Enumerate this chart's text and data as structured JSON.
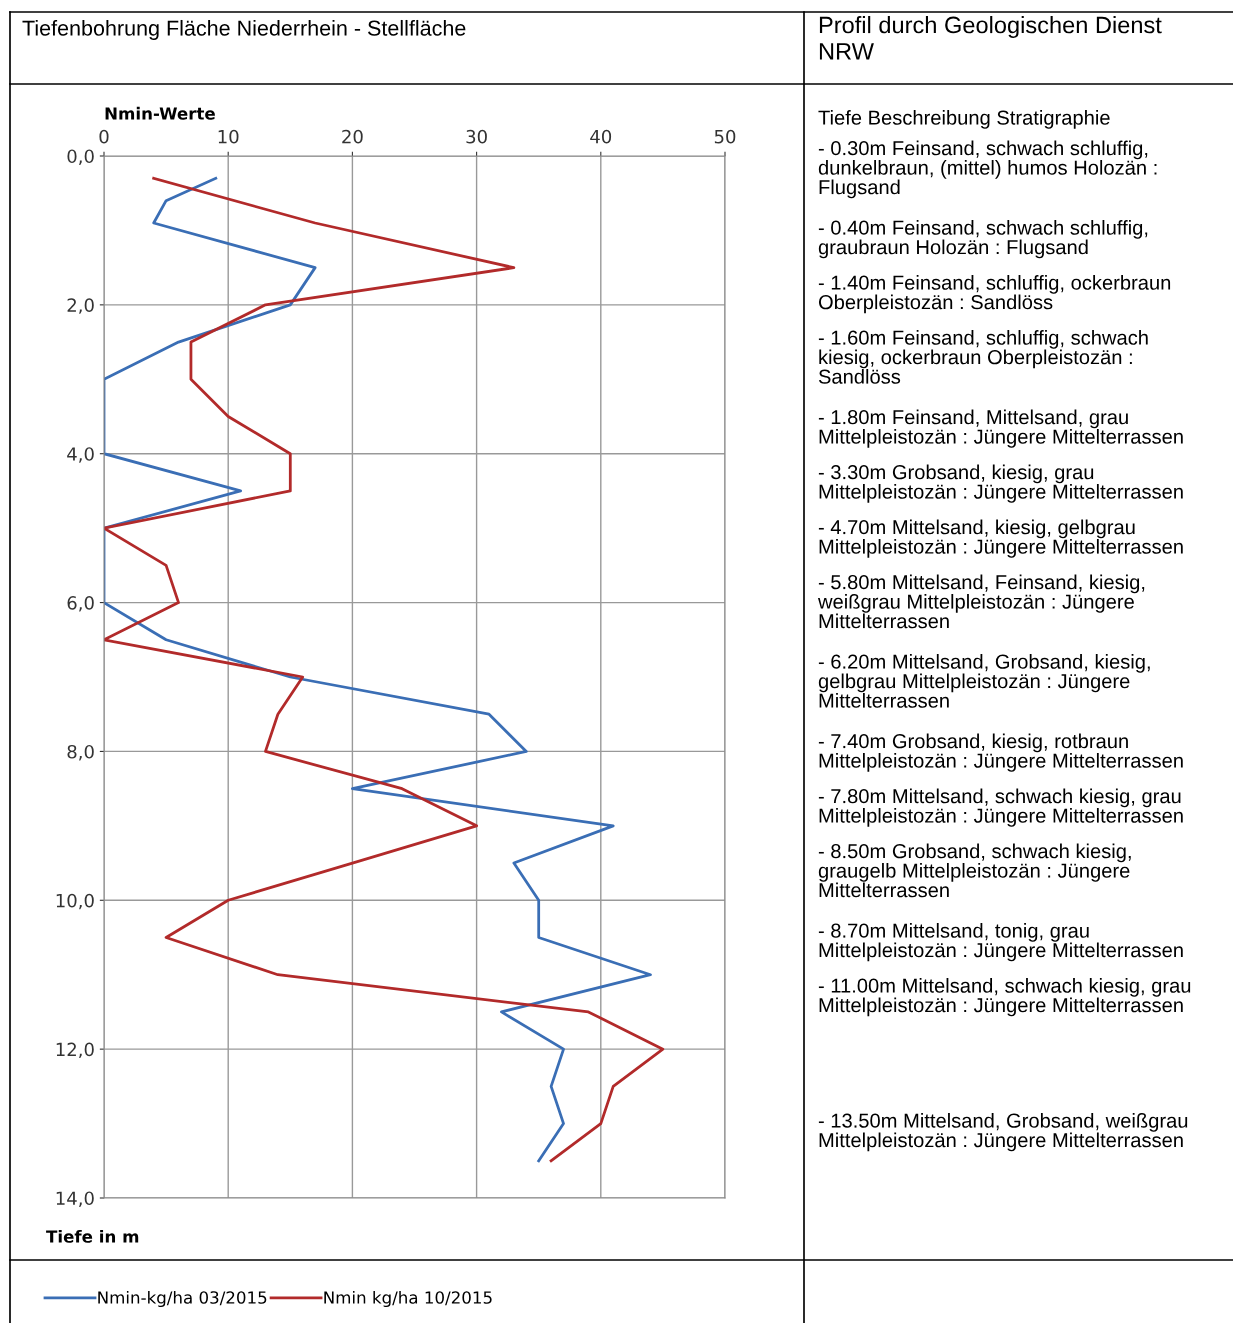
{
  "chart_data": {
    "type": "line",
    "title": "Tiefenbohrung Fläche Niederrhein - Stellfläche",
    "subtitle": "Profil durch Geologischen Dienst NRW",
    "xlabel": "Nmin-Werte",
    "ylabel": "Tiefe in m",
    "series": [
      {
        "name": "Nmin-kg/ha 03/2015",
        "color": "#3a6eb5",
        "x": [
          9,
          5,
          4,
          17,
          15,
          6,
          0,
          0,
          11,
          0,
          0,
          5,
          15,
          31,
          34,
          20,
          41,
          33,
          35,
          35,
          44,
          32,
          37,
          36,
          37,
          35
        ],
        "values": [
          0.3,
          0.6,
          0.9,
          1.5,
          2.0,
          2.5,
          3.0,
          4.0,
          4.5,
          5.0,
          6.0,
          6.5,
          7.0,
          7.5,
          8.0,
          8.5,
          9.0,
          9.5,
          10.0,
          10.5,
          11.0,
          11.5,
          12.0,
          12.5,
          13.0,
          13.5
        ]
      },
      {
        "name": "Nmin kg/ha 10/2015",
        "color": "#b22a2a",
        "x": [
          4,
          17,
          33,
          13,
          7,
          7,
          10,
          15,
          15,
          0,
          5,
          6,
          0,
          16,
          14,
          13,
          24,
          30,
          20,
          10,
          5,
          14,
          39,
          45,
          41,
          40,
          36
        ],
        "values": [
          0.3,
          0.9,
          1.5,
          2.0,
          2.5,
          3.0,
          3.5,
          4.0,
          4.5,
          5.0,
          5.5,
          6.0,
          6.5,
          7.0,
          7.5,
          8.0,
          8.5,
          9.0,
          9.5,
          10.0,
          10.5,
          11.0,
          11.5,
          12.0,
          12.5,
          13.0,
          13.5
        ]
      }
    ],
    "xlim": [
      0,
      50
    ],
    "xticks": [
      0,
      10,
      20,
      30,
      40,
      50
    ],
    "ylim": [
      14,
      0
    ],
    "yticks": [
      {
        "value": 0,
        "label": "0,0"
      },
      {
        "value": 2,
        "label": "2,0"
      },
      {
        "value": 4,
        "label": "4,0"
      },
      {
        "value": 6,
        "label": "6,0"
      },
      {
        "value": 8,
        "label": "8,0"
      },
      {
        "value": 10,
        "label": "10,0"
      },
      {
        "value": 12,
        "label": "12,0"
      },
      {
        "value": 14,
        "label": "14,0"
      }
    ],
    "grid": true,
    "legend": "bottom",
    "marker": "none",
    "line_style": "solid",
    "annotations": [
      "Tiefe Beschreibung Stratigraphie",
      "- 0.30m Feinsand, schwach schluffig,\ndunkelbraun, (mittel) humos Holozän :\nFlugsand",
      "- 0.40m Feinsand, schwach schluffig,\ngraubraun Holozän : Flugsand",
      "- 1.40m Feinsand, schluffig, ockerbraun\nOberpleistozän : Sandlöss",
      "- 1.60m Feinsand, schluffig, schwach\nkiesig, ockerbraun Oberpleistozän :\nSandlöss",
      "- 1.80m Feinsand, Mittelsand, grau\nMittelpleistozän : Jüngere Mittelterrassen",
      "- 3.30m Grobsand, kiesig, grau\nMittelpleistozän : Jüngere Mittelterrassen",
      "- 4.70m Mittelsand, kiesig, gelbgrau\nMittelpleistozän : Jüngere Mittelterrassen",
      "- 5.80m Mittelsand, Feinsand, kiesig,\nweißgrau Mittelpleistozän : Jüngere\nMittelterrassen",
      "- 6.20m Mittelsand, Grobsand, kiesig,\ngelbgrau Mittelpleistozän : Jüngere\nMittelterrassen",
      "- 7.40m Grobsand, kiesig, rotbraun\nMittelpleistozän : Jüngere Mittelterrassen",
      "- 7.80m Mittelsand, schwach kiesig, grau\nMittelpleistozän : Jüngere Mittelterrassen",
      "- 8.50m Grobsand, schwach kiesig,\ngraugelb Mittelpleistozän : Jüngere\nMittelterrassen",
      "- 8.70m Mittelsand, tonig, grau\nMittelpleistozän : Jüngere Mittelterrassen",
      "- 11.00m Mittelsand, schwach kiesig, grau\nMittelpleistozän : Jüngere Mittelterrassen",
      "- 13.50m Mittelsand, Grobsand, weißgrau\nMittelpleistozän : Jüngere Mittelterrassen"
    ]
  }
}
